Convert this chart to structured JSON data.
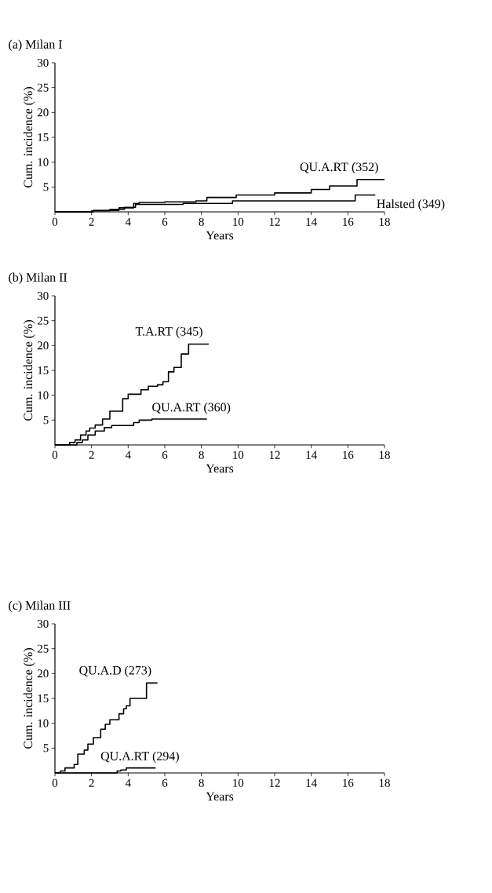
{
  "chart_data": [
    {
      "type": "step",
      "title": "(a) Milan I",
      "xlabel": "Years",
      "ylabel": "Cum. incidence (%)",
      "xlim": [
        0,
        18
      ],
      "ylim": [
        0,
        30
      ],
      "xticks": [
        0,
        2,
        4,
        6,
        8,
        10,
        12,
        14,
        16,
        18
      ],
      "yticks": [
        5,
        10,
        15,
        20,
        25,
        30
      ],
      "marker": "none",
      "line_style": "solid",
      "series": [
        {
          "name": "QU.A.RT (352)",
          "color": "#000000",
          "x": [
            0,
            2.1,
            3.5,
            4.3,
            4.6,
            6,
            7.7,
            8.3,
            9.9,
            12,
            14,
            15,
            16.5,
            18
          ],
          "values": [
            0,
            0.3,
            0.8,
            1.7,
            1.9,
            2,
            2.2,
            2.9,
            3.4,
            3.8,
            4.5,
            5.2,
            6.5,
            6.5
          ]
        },
        {
          "name": "Halsted (349)",
          "color": "#000000",
          "x": [
            0,
            2,
            3,
            3.8,
            4.4,
            7,
            9.7,
            16.4,
            17.5
          ],
          "values": [
            0,
            0.2,
            0.5,
            0.9,
            1.5,
            1.7,
            2.2,
            3.4,
            3.4
          ]
        }
      ]
    },
    {
      "type": "step",
      "title": "(b) Milan II",
      "xlabel": "Years",
      "ylabel": "Cum. incidence (%)",
      "xlim": [
        0,
        18
      ],
      "ylim": [
        0,
        30
      ],
      "xticks": [
        0,
        2,
        4,
        6,
        8,
        10,
        12,
        14,
        16,
        18
      ],
      "yticks": [
        5,
        10,
        15,
        20,
        25,
        30
      ],
      "marker": "none",
      "line_style": "solid",
      "series": [
        {
          "name": "T.A.RT (345)",
          "color": "#000000",
          "x": [
            0,
            0.8,
            1.1,
            1.4,
            1.7,
            1.9,
            2.2,
            2.6,
            3.0,
            3.7,
            4.0,
            4.7,
            5.1,
            5.6,
            5.9,
            6.2,
            6.5,
            6.9,
            7.3,
            8.4
          ],
          "values": [
            0,
            0.5,
            1,
            2,
            2.8,
            3.4,
            4,
            5.2,
            6.8,
            9.3,
            10.2,
            11.1,
            11.8,
            12.1,
            12.7,
            14.7,
            15.6,
            18.3,
            20.3,
            20.3
          ]
        },
        {
          "name": "QU.A.RT (360)",
          "color": "#000000",
          "x": [
            0,
            1.2,
            1.5,
            1.8,
            2.2,
            2.7,
            3.1,
            4.3,
            4.6,
            5.3,
            8.3
          ],
          "values": [
            0,
            0.5,
            1,
            2,
            2.8,
            3.5,
            3.9,
            4.5,
            5,
            5.2,
            5.2
          ]
        }
      ]
    },
    {
      "type": "step",
      "title": "(c) Milan III",
      "xlabel": "Years",
      "ylabel": "Cum. incidence (%)",
      "xlim": [
        0,
        18
      ],
      "ylim": [
        0,
        30
      ],
      "xticks": [
        0,
        2,
        4,
        6,
        8,
        10,
        12,
        14,
        16,
        18
      ],
      "yticks": [
        5,
        10,
        15,
        20,
        25,
        30
      ],
      "marker": "none",
      "line_style": "solid",
      "series": [
        {
          "name": "QU.A.D (273)",
          "color": "#000000",
          "x": [
            0,
            0.3,
            0.55,
            1.05,
            1.25,
            1.6,
            1.8,
            2.1,
            2.5,
            2.75,
            3.0,
            3.5,
            3.75,
            3.9,
            4.1,
            5.0,
            5.6
          ],
          "values": [
            0,
            0.4,
            1,
            1.7,
            3.8,
            4.6,
            5.8,
            7.1,
            8.8,
            9.8,
            10.7,
            11.9,
            12.9,
            13.5,
            15,
            18.1,
            18.1
          ]
        },
        {
          "name": "QU.A.RT (294)",
          "color": "#000000",
          "x": [
            0,
            3.4,
            3.6,
            3.9,
            5.5
          ],
          "values": [
            0,
            0.4,
            0.6,
            1,
            1
          ]
        }
      ]
    }
  ]
}
